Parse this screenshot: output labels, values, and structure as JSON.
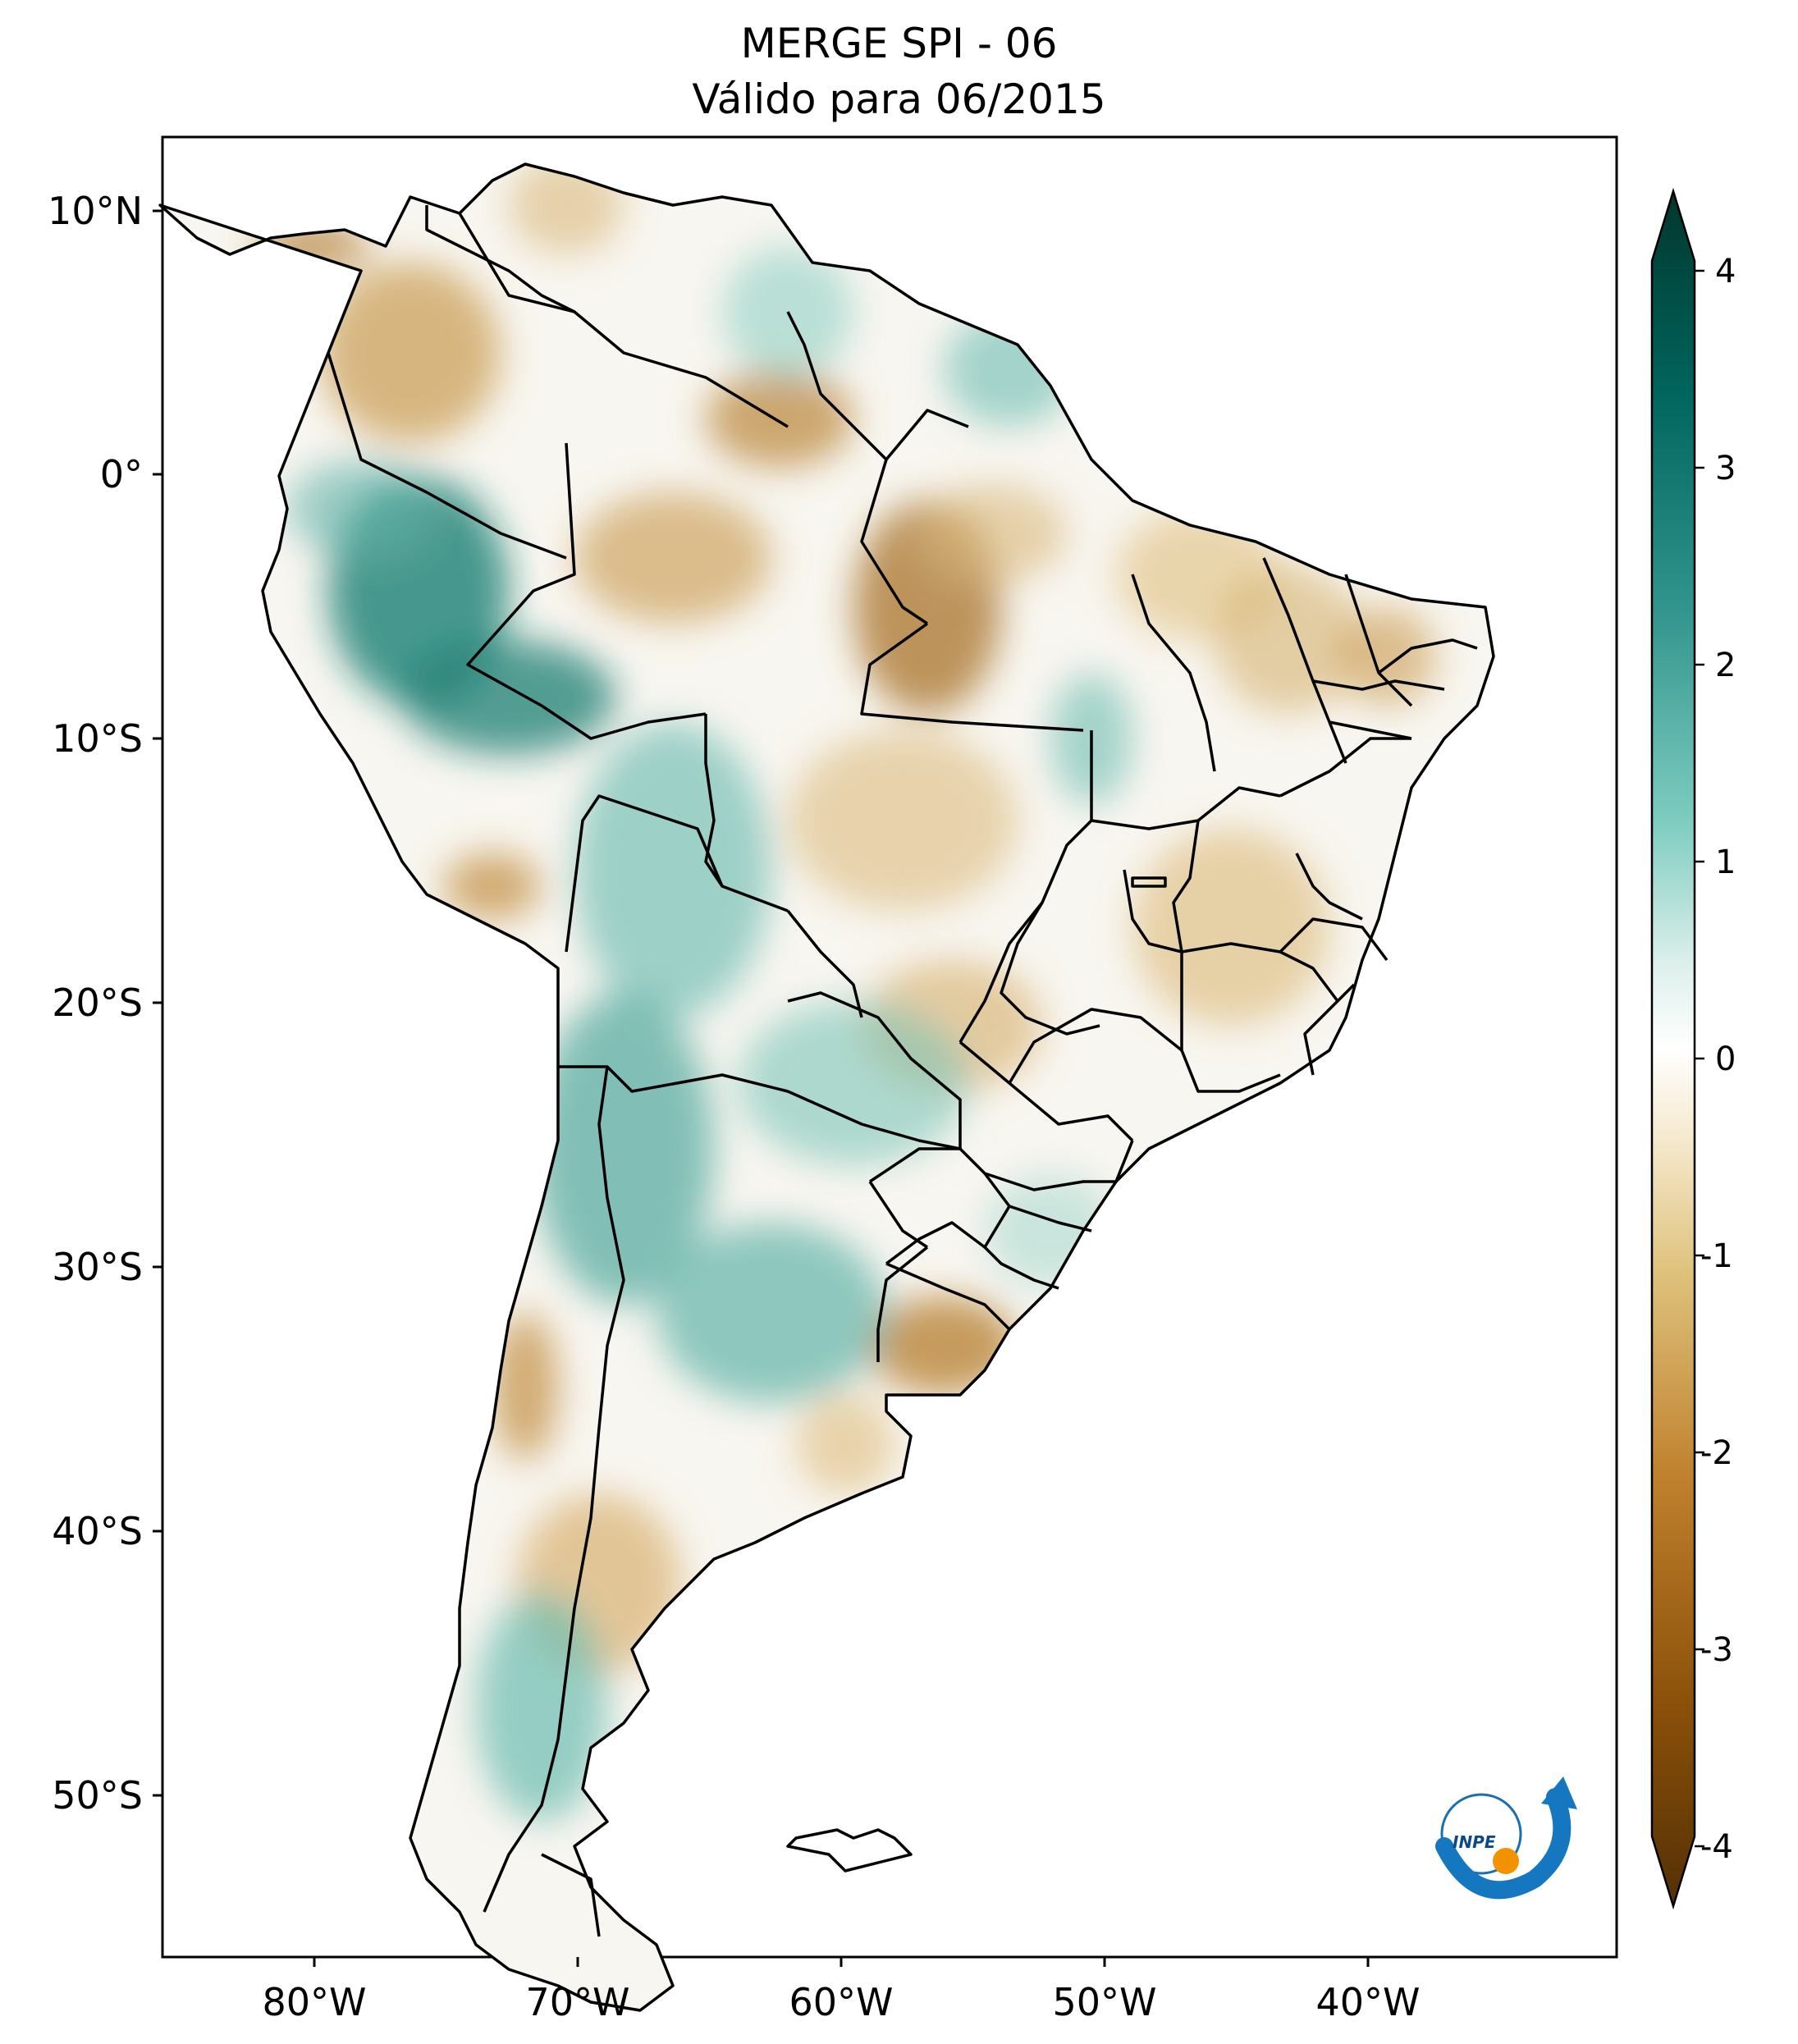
{
  "title": {
    "line1": "MERGE   SPI - 06",
    "line2": "Válido para 06/2015"
  },
  "map": {
    "region": "South America",
    "lon_ticks": [
      "80°W",
      "70°W",
      "60°W",
      "50°W",
      "40°W"
    ],
    "lat_ticks": [
      "10°N",
      "0°",
      "10°S",
      "20°S",
      "30°S",
      "40°S",
      "50°S"
    ]
  },
  "colorbar": {
    "labels": [
      "4",
      "3",
      "2",
      "1",
      "0",
      "-1",
      "-2",
      "-3",
      "-4"
    ],
    "colors": {
      "wet_max": "#01362d",
      "wet": "#35978f",
      "neutral": "#ffffff",
      "dry": "#dfc27d",
      "dry_max": "#543005"
    }
  },
  "logo": {
    "name": "inpe-logo",
    "text": "INPE"
  },
  "chart_data": {
    "type": "heatmap",
    "title": "MERGE   SPI - 06",
    "subtitle": "Válido para 06/2015",
    "variable": "SPI - 06",
    "xlabel": "",
    "ylabel": "",
    "xlim": [
      -85,
      -30
    ],
    "ylim": [
      -56,
      12.5
    ],
    "colorbar_range": [
      -4,
      4
    ],
    "colormap": "BrBG"
  }
}
